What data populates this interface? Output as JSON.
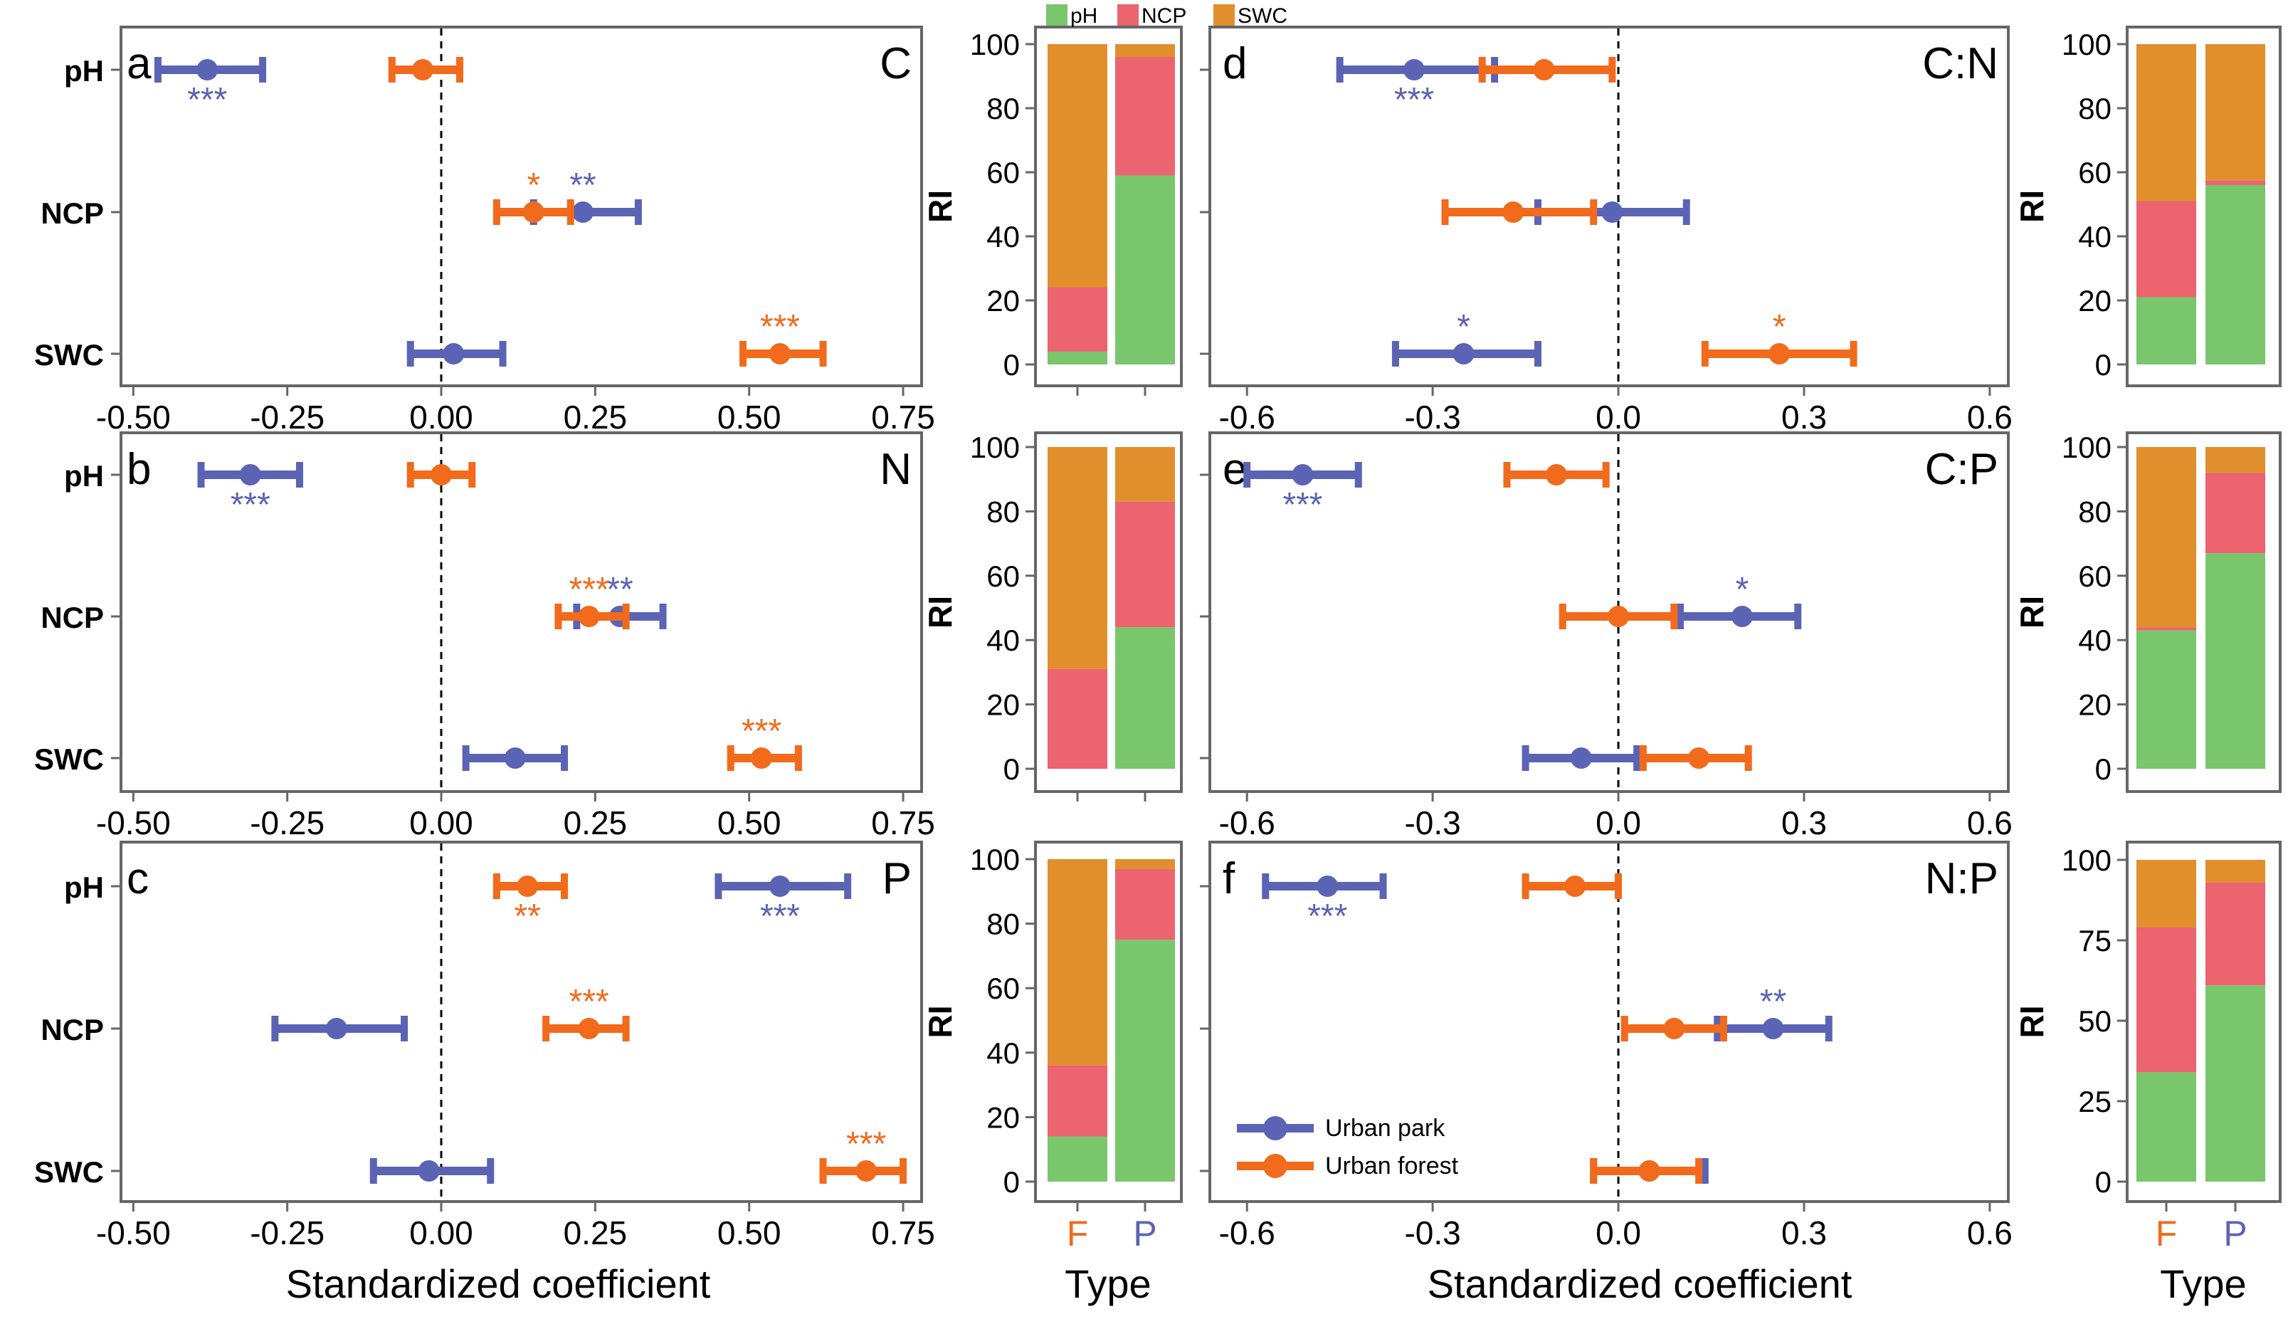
{
  "colors": {
    "park": "#5b63b5",
    "forest": "#f26a1b",
    "ph": "#79c66c",
    "ncp": "#eb6470",
    "swc": "#e18f2d",
    "axis": "#000000",
    "frame": "#666666"
  },
  "legend_bar": {
    "items": [
      {
        "key": "ph",
        "label": "pH"
      },
      {
        "key": "ncp",
        "label": "NCP"
      },
      {
        "key": "swc",
        "label": "SWC"
      }
    ]
  },
  "legend_line": {
    "park": "Urban park",
    "forest": "Urban forest"
  },
  "axis_labels": {
    "coef_x": "Standardized coefficient",
    "type_x": "Type",
    "ri_y": "RI"
  },
  "chart_data": [
    {
      "type": "forest",
      "id": "a",
      "letter": "a",
      "element": "C",
      "xlim": [
        -0.52,
        0.78
      ],
      "xticks": [
        -0.5,
        -0.25,
        0.0,
        0.25,
        0.5,
        0.75
      ],
      "xtick_labels": [
        "-0.50",
        "-0.25",
        "0.00",
        "0.25",
        "0.50",
        "0.75"
      ],
      "predictors": [
        "pH",
        "NCP",
        "SWC"
      ],
      "series": [
        {
          "name": "Urban park",
          "color": "park",
          "points": [
            {
              "est": -0.38,
              "lo": -0.46,
              "hi": -0.29,
              "sig": "***",
              "sig_pos": "below"
            },
            {
              "est": 0.23,
              "lo": 0.15,
              "hi": 0.32,
              "sig": "**",
              "sig_pos": "above"
            },
            {
              "est": 0.02,
              "lo": -0.05,
              "hi": 0.1,
              "sig": "",
              "sig_pos": "above"
            }
          ]
        },
        {
          "name": "Urban forest",
          "color": "forest",
          "points": [
            {
              "est": -0.03,
              "lo": -0.08,
              "hi": 0.03,
              "sig": "",
              "sig_pos": "above"
            },
            {
              "est": 0.15,
              "lo": 0.09,
              "hi": 0.21,
              "sig": "*",
              "sig_pos": "above"
            },
            {
              "est": 0.55,
              "lo": 0.49,
              "hi": 0.62,
              "sig": "***",
              "sig_pos": "above"
            }
          ]
        }
      ]
    },
    {
      "type": "forest",
      "id": "b",
      "letter": "b",
      "element": "N",
      "xlim": [
        -0.52,
        0.78
      ],
      "xticks": [
        -0.5,
        -0.25,
        0.0,
        0.25,
        0.5,
        0.75
      ],
      "xtick_labels": [
        "-0.50",
        "-0.25",
        "0.00",
        "0.25",
        "0.50",
        "0.75"
      ],
      "predictors": [
        "pH",
        "NCP",
        "SWC"
      ],
      "series": [
        {
          "name": "Urban park",
          "color": "park",
          "points": [
            {
              "est": -0.31,
              "lo": -0.39,
              "hi": -0.23,
              "sig": "***",
              "sig_pos": "below"
            },
            {
              "est": 0.29,
              "lo": 0.22,
              "hi": 0.36,
              "sig": "**",
              "sig_pos": "above"
            },
            {
              "est": 0.12,
              "lo": 0.04,
              "hi": 0.2,
              "sig": "",
              "sig_pos": "above"
            }
          ]
        },
        {
          "name": "Urban forest",
          "color": "forest",
          "points": [
            {
              "est": 0.0,
              "lo": -0.05,
              "hi": 0.05,
              "sig": "",
              "sig_pos": "above"
            },
            {
              "est": 0.24,
              "lo": 0.19,
              "hi": 0.3,
              "sig": "***",
              "sig_pos": "above"
            },
            {
              "est": 0.52,
              "lo": 0.47,
              "hi": 0.58,
              "sig": "***",
              "sig_pos": "above"
            }
          ]
        }
      ]
    },
    {
      "type": "forest",
      "id": "c",
      "letter": "c",
      "element": "P",
      "xlim": [
        -0.52,
        0.78
      ],
      "xticks": [
        -0.5,
        -0.25,
        0.0,
        0.25,
        0.5,
        0.75
      ],
      "xtick_labels": [
        "-0.50",
        "-0.25",
        "0.00",
        "0.25",
        "0.50",
        "0.75"
      ],
      "predictors": [
        "pH",
        "NCP",
        "SWC"
      ],
      "series": [
        {
          "name": "Urban park",
          "color": "park",
          "points": [
            {
              "est": 0.55,
              "lo": 0.45,
              "hi": 0.66,
              "sig": "***",
              "sig_pos": "below"
            },
            {
              "est": -0.17,
              "lo": -0.27,
              "hi": -0.06,
              "sig": "",
              "sig_pos": "above"
            },
            {
              "est": -0.02,
              "lo": -0.11,
              "hi": 0.08,
              "sig": "",
              "sig_pos": "above"
            }
          ]
        },
        {
          "name": "Urban forest",
          "color": "forest",
          "points": [
            {
              "est": 0.14,
              "lo": 0.09,
              "hi": 0.2,
              "sig": "**",
              "sig_pos": "below"
            },
            {
              "est": 0.24,
              "lo": 0.17,
              "hi": 0.3,
              "sig": "***",
              "sig_pos": "above"
            },
            {
              "est": 0.69,
              "lo": 0.62,
              "hi": 0.75,
              "sig": "***",
              "sig_pos": "above"
            }
          ]
        }
      ]
    },
    {
      "type": "forest",
      "id": "d",
      "letter": "d",
      "element": "C:N",
      "xlim": [
        -0.66,
        0.63
      ],
      "xticks": [
        -0.6,
        -0.3,
        0.0,
        0.3,
        0.6
      ],
      "xtick_labels": [
        "-0.6",
        "-0.3",
        "0.0",
        "0.3",
        "0.6"
      ],
      "predictors": [
        "pH",
        "NCP",
        "SWC"
      ],
      "series": [
        {
          "name": "Urban park",
          "color": "park",
          "points": [
            {
              "est": -0.33,
              "lo": -0.45,
              "hi": -0.2,
              "sig": "***",
              "sig_pos": "below"
            },
            {
              "est": -0.01,
              "lo": -0.13,
              "hi": 0.11,
              "sig": "",
              "sig_pos": "above"
            },
            {
              "est": -0.25,
              "lo": -0.36,
              "hi": -0.13,
              "sig": "*",
              "sig_pos": "above"
            }
          ]
        },
        {
          "name": "Urban forest",
          "color": "forest",
          "points": [
            {
              "est": -0.12,
              "lo": -0.22,
              "hi": -0.01,
              "sig": "",
              "sig_pos": "above"
            },
            {
              "est": -0.17,
              "lo": -0.28,
              "hi": -0.04,
              "sig": "",
              "sig_pos": "above"
            },
            {
              "est": 0.26,
              "lo": 0.14,
              "hi": 0.38,
              "sig": "*",
              "sig_pos": "above"
            }
          ]
        }
      ]
    },
    {
      "type": "forest",
      "id": "e",
      "letter": "e",
      "element": "C:P",
      "xlim": [
        -0.66,
        0.63
      ],
      "xticks": [
        -0.6,
        -0.3,
        0.0,
        0.3,
        0.6
      ],
      "xtick_labels": [
        "-0.6",
        "-0.3",
        "0.0",
        "0.3",
        "0.6"
      ],
      "predictors": [
        "pH",
        "NCP",
        "SWC"
      ],
      "series": [
        {
          "name": "Urban park",
          "color": "park",
          "points": [
            {
              "est": -0.51,
              "lo": -0.6,
              "hi": -0.42,
              "sig": "***",
              "sig_pos": "below"
            },
            {
              "est": 0.2,
              "lo": 0.1,
              "hi": 0.29,
              "sig": "*",
              "sig_pos": "above"
            },
            {
              "est": -0.06,
              "lo": -0.15,
              "hi": 0.03,
              "sig": "",
              "sig_pos": "above"
            }
          ]
        },
        {
          "name": "Urban forest",
          "color": "forest",
          "points": [
            {
              "est": -0.1,
              "lo": -0.18,
              "hi": -0.02,
              "sig": "",
              "sig_pos": "above"
            },
            {
              "est": 0.0,
              "lo": -0.09,
              "hi": 0.09,
              "sig": "",
              "sig_pos": "above"
            },
            {
              "est": 0.13,
              "lo": 0.04,
              "hi": 0.21,
              "sig": "",
              "sig_pos": "above"
            }
          ]
        }
      ]
    },
    {
      "type": "forest",
      "id": "f",
      "letter": "f",
      "element": "N:P",
      "xlim": [
        -0.66,
        0.63
      ],
      "xticks": [
        -0.6,
        -0.3,
        0.0,
        0.3,
        0.6
      ],
      "xtick_labels": [
        "-0.6",
        "-0.3",
        "0.0",
        "0.3",
        "0.6"
      ],
      "predictors": [
        "pH",
        "NCP",
        "SWC"
      ],
      "series": [
        {
          "name": "Urban park",
          "color": "park",
          "points": [
            {
              "est": -0.47,
              "lo": -0.57,
              "hi": -0.38,
              "sig": "***",
              "sig_pos": "below"
            },
            {
              "est": 0.25,
              "lo": 0.16,
              "hi": 0.34,
              "sig": "**",
              "sig_pos": "above"
            },
            {
              "est": 0.05,
              "lo": -0.04,
              "hi": 0.14,
              "sig": "",
              "sig_pos": "above"
            }
          ]
        },
        {
          "name": "Urban forest",
          "color": "forest",
          "points": [
            {
              "est": -0.07,
              "lo": -0.15,
              "hi": 0.0,
              "sig": "",
              "sig_pos": "above"
            },
            {
              "est": 0.09,
              "lo": 0.01,
              "hi": 0.17,
              "sig": "",
              "sig_pos": "above"
            },
            {
              "est": 0.05,
              "lo": -0.04,
              "hi": 0.13,
              "sig": "",
              "sig_pos": "above"
            }
          ]
        }
      ]
    },
    {
      "type": "stacked-bar",
      "id": "ri-a",
      "ylim": [
        0,
        100
      ],
      "yticks": [
        0,
        20,
        40,
        60,
        80,
        100
      ],
      "categories": [
        "F",
        "P"
      ],
      "series": [
        {
          "name": "pH",
          "color": "ph",
          "values": [
            4,
            59
          ]
        },
        {
          "name": "NCP",
          "color": "ncp",
          "values": [
            20,
            37
          ]
        },
        {
          "name": "SWC",
          "color": "swc",
          "values": [
            76,
            4
          ]
        }
      ]
    },
    {
      "type": "stacked-bar",
      "id": "ri-b",
      "ylim": [
        0,
        100
      ],
      "yticks": [
        0,
        20,
        40,
        60,
        80,
        100
      ],
      "categories": [
        "F",
        "P"
      ],
      "series": [
        {
          "name": "pH",
          "color": "ph",
          "values": [
            0,
            44
          ]
        },
        {
          "name": "NCP",
          "color": "ncp",
          "values": [
            31,
            39
          ]
        },
        {
          "name": "SWC",
          "color": "swc",
          "values": [
            69,
            17
          ]
        }
      ]
    },
    {
      "type": "stacked-bar",
      "id": "ri-c",
      "ylim": [
        0,
        100
      ],
      "yticks": [
        0,
        20,
        40,
        60,
        80,
        100
      ],
      "categories": [
        "F",
        "P"
      ],
      "series": [
        {
          "name": "pH",
          "color": "ph",
          "values": [
            14,
            75
          ]
        },
        {
          "name": "NCP",
          "color": "ncp",
          "values": [
            22,
            22
          ]
        },
        {
          "name": "SWC",
          "color": "swc",
          "values": [
            64,
            3
          ]
        }
      ]
    },
    {
      "type": "stacked-bar",
      "id": "ri-d",
      "ylim": [
        0,
        100
      ],
      "yticks": [
        0,
        20,
        40,
        60,
        80,
        100
      ],
      "categories": [
        "F",
        "P"
      ],
      "series": [
        {
          "name": "pH",
          "color": "ph",
          "values": [
            21,
            56
          ]
        },
        {
          "name": "NCP",
          "color": "ncp",
          "values": [
            30,
            1.5
          ]
        },
        {
          "name": "SWC",
          "color": "swc",
          "values": [
            49,
            42.5
          ]
        }
      ]
    },
    {
      "type": "stacked-bar",
      "id": "ri-e",
      "ylim": [
        0,
        100
      ],
      "yticks": [
        0,
        20,
        40,
        60,
        80,
        100
      ],
      "categories": [
        "F",
        "P"
      ],
      "series": [
        {
          "name": "pH",
          "color": "ph",
          "values": [
            43,
            67
          ]
        },
        {
          "name": "NCP",
          "color": "ncp",
          "values": [
            1,
            25
          ]
        },
        {
          "name": "SWC",
          "color": "swc",
          "values": [
            56,
            8
          ]
        }
      ]
    },
    {
      "type": "stacked-bar",
      "id": "ri-f",
      "ylim": [
        0,
        100
      ],
      "yticks": [
        0,
        25,
        50,
        75,
        100
      ],
      "categories": [
        "F",
        "P"
      ],
      "series": [
        {
          "name": "pH",
          "color": "ph",
          "values": [
            34,
            61
          ]
        },
        {
          "name": "NCP",
          "color": "ncp",
          "values": [
            45,
            32
          ]
        },
        {
          "name": "SWC",
          "color": "swc",
          "values": [
            21,
            7
          ]
        }
      ]
    }
  ]
}
